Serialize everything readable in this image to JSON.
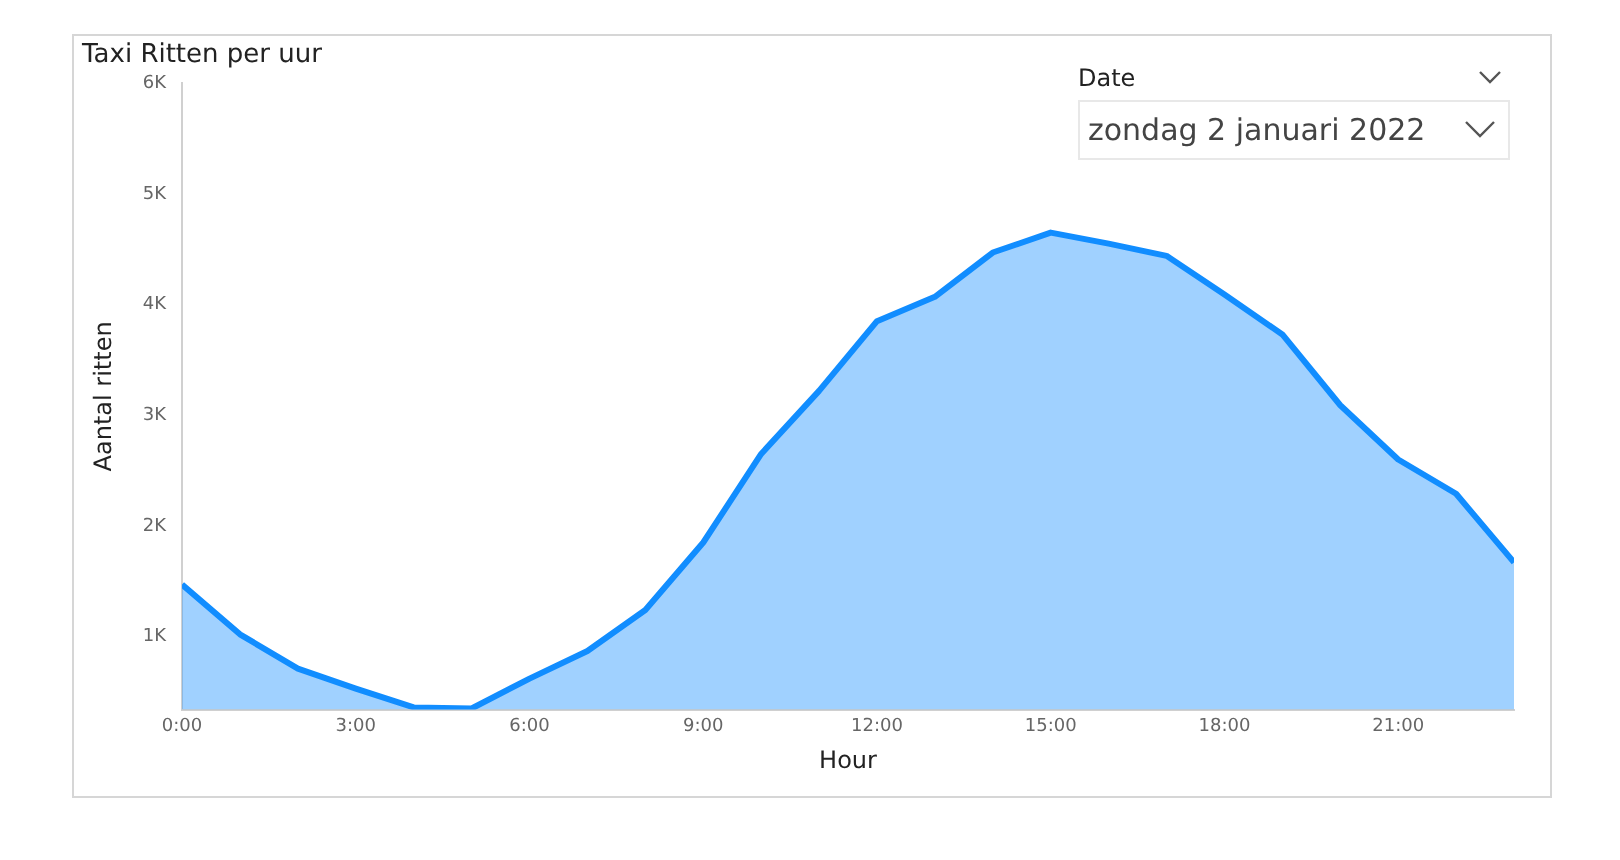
{
  "chart_data": {
    "type": "area",
    "title": "Taxi Ritten per uur",
    "xlabel": "Hour",
    "ylabel": "Aantal ritten",
    "x": [
      0,
      1,
      2,
      3,
      4,
      5,
      6,
      7,
      8,
      9,
      10,
      11,
      12,
      13,
      14,
      15,
      16,
      17,
      18,
      19,
      20,
      21,
      22,
      23
    ],
    "series": [
      {
        "color": "#118dff",
        "values": [
          1470,
          1020,
          710,
          530,
          360,
          350,
          620,
          870,
          1240,
          1850,
          2650,
          3220,
          3850,
          4070,
          4470,
          4650,
          4550,
          4440,
          4090,
          3730,
          3090,
          2600,
          2290,
          1670
        ]
      }
    ],
    "xlim": [
      0,
      23
    ],
    "ylim": [
      340,
      6000
    ],
    "xticks": [
      {
        "value": 0,
        "label": "0:00"
      },
      {
        "value": 3,
        "label": "3:00"
      },
      {
        "value": 6,
        "label": "6:00"
      },
      {
        "value": 9,
        "label": "9:00"
      },
      {
        "value": 12,
        "label": "12:00"
      },
      {
        "value": 15,
        "label": "15:00"
      },
      {
        "value": 18,
        "label": "18:00"
      },
      {
        "value": 21,
        "label": "21:00"
      }
    ],
    "yticks": [
      {
        "value": 1000,
        "label": "1K"
      },
      {
        "value": 2000,
        "label": "2K"
      },
      {
        "value": 3000,
        "label": "3K"
      },
      {
        "value": 4000,
        "label": "4K"
      },
      {
        "value": 5000,
        "label": "5K"
      },
      {
        "value": 6000,
        "label": "6K"
      }
    ],
    "grid": false,
    "legend": false,
    "marker": "none",
    "line_style": "solid",
    "annotations": [
      "Date",
      "zondag 2 januari 2022"
    ]
  }
}
